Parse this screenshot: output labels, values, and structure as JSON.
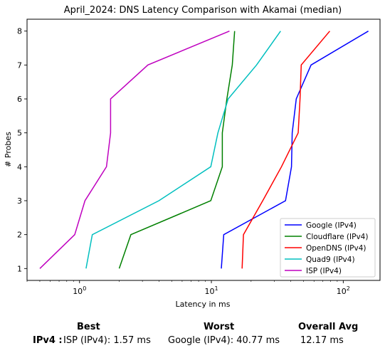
{
  "chart_data": {
    "type": "line",
    "title": "April_2024: DNS Latency Comparison with Akamai (median)",
    "xlabel": "Latency in ms",
    "ylabel": "# Probes",
    "xscale": "log",
    "xlim": [
      0.4,
      190
    ],
    "ylim": [
      0.65,
      8.35
    ],
    "x_tick_labels": [
      "10^0",
      "10^1",
      "10^2"
    ],
    "x_ticks": [
      1,
      10,
      100
    ],
    "y_ticks": [
      1,
      2,
      3,
      4,
      5,
      6,
      7,
      8
    ],
    "grid": false,
    "legend_position": "lower right",
    "series": [
      {
        "name": "Google (IPv4)",
        "color": "#0000ff",
        "points": [
          [
            11.9,
            1
          ],
          [
            12.4,
            2
          ],
          [
            36.5,
            3
          ],
          [
            40.5,
            4
          ],
          [
            41,
            5
          ],
          [
            44,
            6
          ],
          [
            57,
            7
          ],
          [
            155,
            8
          ]
        ]
      },
      {
        "name": "Cloudflare (IPv4)",
        "color": "#008000",
        "points": [
          [
            2.0,
            1
          ],
          [
            2.45,
            2
          ],
          [
            9.9,
            3
          ],
          [
            12.1,
            4
          ],
          [
            12.1,
            5
          ],
          [
            13.1,
            6
          ],
          [
            14.4,
            7
          ],
          [
            15.0,
            8
          ]
        ]
      },
      {
        "name": "OpenDNS (IPv4)",
        "color": "#ff0000",
        "points": [
          [
            17.1,
            1
          ],
          [
            17.5,
            2
          ],
          [
            24.5,
            3
          ],
          [
            34,
            4
          ],
          [
            45.5,
            5
          ],
          [
            47,
            6
          ],
          [
            48,
            7
          ],
          [
            79,
            8
          ]
        ]
      },
      {
        "name": "Quad9 (IPv4)",
        "color": "#00bfbf",
        "points": [
          [
            1.12,
            1
          ],
          [
            1.25,
            2
          ],
          [
            4.0,
            3
          ],
          [
            9.9,
            4
          ],
          [
            11.2,
            5
          ],
          [
            13.4,
            6
          ],
          [
            22,
            7
          ],
          [
            33.5,
            8
          ]
        ]
      },
      {
        "name": "ISP (IPv4)",
        "color": "#bf00bf",
        "points": [
          [
            0.5,
            1
          ],
          [
            0.92,
            2
          ],
          [
            1.1,
            3
          ],
          [
            1.6,
            4
          ],
          [
            1.72,
            5
          ],
          [
            1.72,
            6
          ],
          [
            3.3,
            7
          ],
          [
            13.7,
            8
          ]
        ]
      }
    ]
  },
  "summary": {
    "headers": {
      "best": "Best",
      "worst": "Worst",
      "overall_avg": "Overall Avg"
    },
    "row": {
      "label": "IPv4 :",
      "best": "ISP (IPv4): 1.57 ms",
      "worst": "Google (IPv4): 40.77 ms",
      "overall_avg": "12.17 ms"
    }
  }
}
